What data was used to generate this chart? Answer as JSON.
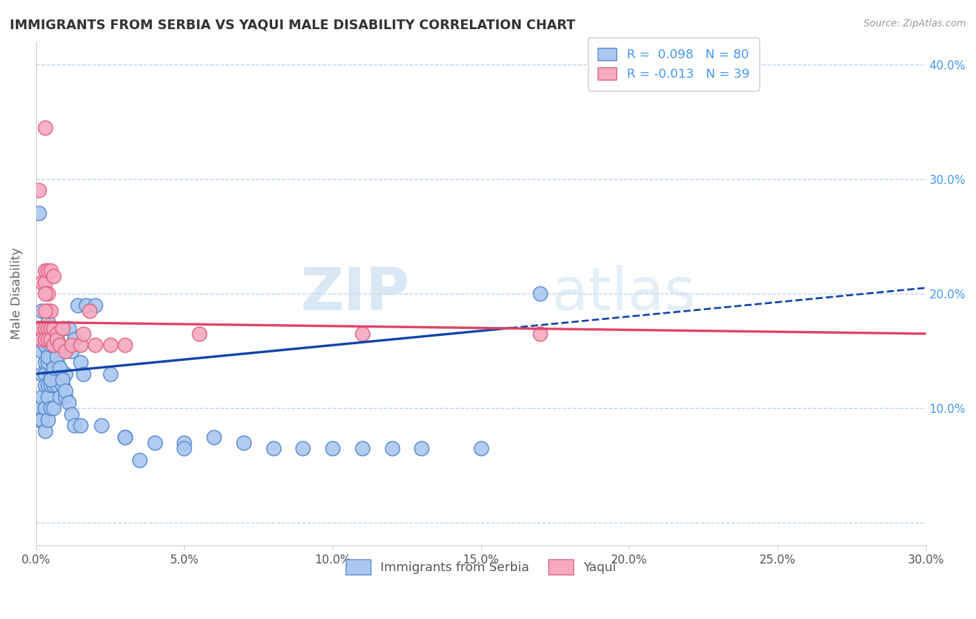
{
  "title": "IMMIGRANTS FROM SERBIA VS YAQUI MALE DISABILITY CORRELATION CHART",
  "source": "Source: ZipAtlas.com",
  "ylabel": "Male Disability",
  "xlim": [
    0.0,
    0.3
  ],
  "ylim": [
    -0.02,
    0.42
  ],
  "xticks": [
    0.0,
    0.05,
    0.1,
    0.15,
    0.2,
    0.25,
    0.3
  ],
  "yticks": [
    0.0,
    0.1,
    0.2,
    0.3,
    0.4
  ],
  "xtick_labels": [
    "0.0%",
    "5.0%",
    "10.0%",
    "15.0%",
    "20.0%",
    "25.0%",
    "30.0%"
  ],
  "ytick_labels_right": [
    "",
    "10.0%",
    "20.0%",
    "30.0%",
    "40.0%"
  ],
  "serbia_R": 0.098,
  "serbia_N": 80,
  "yaqui_R": -0.013,
  "yaqui_N": 39,
  "serbia_color": "#aac8f0",
  "serbia_edge": "#5588cc",
  "yaqui_color": "#f5aac0",
  "yaqui_edge": "#e06080",
  "serbia_trend_color": "#1144aa",
  "yaqui_trend_color": "#dd4466",
  "watermark_zip": "ZIP",
  "watermark_atlas": "atlas",
  "legend_label_1": "Immigrants from Serbia",
  "legend_label_2": "Yaqui",
  "serbia_x": [
    0.001,
    0.001,
    0.001,
    0.002,
    0.002,
    0.002,
    0.002,
    0.002,
    0.003,
    0.003,
    0.003,
    0.003,
    0.003,
    0.003,
    0.004,
    0.004,
    0.004,
    0.004,
    0.004,
    0.005,
    0.005,
    0.005,
    0.005,
    0.006,
    0.006,
    0.006,
    0.006,
    0.007,
    0.007,
    0.007,
    0.008,
    0.008,
    0.009,
    0.009,
    0.01,
    0.01,
    0.011,
    0.012,
    0.013,
    0.014,
    0.015,
    0.016,
    0.017,
    0.02,
    0.022,
    0.025,
    0.03,
    0.035,
    0.04,
    0.05,
    0.06,
    0.07,
    0.08,
    0.09,
    0.1,
    0.11,
    0.12,
    0.13,
    0.15,
    0.17,
    0.002,
    0.003,
    0.003,
    0.004,
    0.004,
    0.005,
    0.005,
    0.006,
    0.006,
    0.007,
    0.007,
    0.008,
    0.009,
    0.01,
    0.011,
    0.012,
    0.013,
    0.015,
    0.03,
    0.05
  ],
  "serbia_y": [
    0.27,
    0.1,
    0.09,
    0.17,
    0.15,
    0.13,
    0.11,
    0.09,
    0.16,
    0.14,
    0.13,
    0.12,
    0.1,
    0.08,
    0.15,
    0.14,
    0.12,
    0.11,
    0.09,
    0.15,
    0.13,
    0.12,
    0.1,
    0.14,
    0.13,
    0.12,
    0.1,
    0.16,
    0.14,
    0.12,
    0.13,
    0.11,
    0.15,
    0.12,
    0.13,
    0.11,
    0.17,
    0.15,
    0.16,
    0.19,
    0.14,
    0.13,
    0.19,
    0.19,
    0.085,
    0.13,
    0.075,
    0.055,
    0.07,
    0.07,
    0.075,
    0.07,
    0.065,
    0.065,
    0.065,
    0.065,
    0.065,
    0.065,
    0.065,
    0.2,
    0.185,
    0.155,
    0.165,
    0.145,
    0.175,
    0.155,
    0.125,
    0.155,
    0.135,
    0.165,
    0.145,
    0.135,
    0.125,
    0.115,
    0.105,
    0.095,
    0.085,
    0.085,
    0.075,
    0.065
  ],
  "yaqui_x": [
    0.001,
    0.001,
    0.002,
    0.002,
    0.002,
    0.003,
    0.003,
    0.003,
    0.003,
    0.003,
    0.004,
    0.004,
    0.004,
    0.004,
    0.005,
    0.005,
    0.005,
    0.006,
    0.006,
    0.007,
    0.007,
    0.008,
    0.009,
    0.01,
    0.012,
    0.015,
    0.016,
    0.018,
    0.02,
    0.025,
    0.03,
    0.055,
    0.11,
    0.17,
    0.003,
    0.003,
    0.004,
    0.005,
    0.006
  ],
  "yaqui_y": [
    0.29,
    0.17,
    0.21,
    0.17,
    0.16,
    0.345,
    0.22,
    0.21,
    0.17,
    0.16,
    0.2,
    0.185,
    0.17,
    0.16,
    0.185,
    0.17,
    0.16,
    0.17,
    0.155,
    0.165,
    0.16,
    0.155,
    0.17,
    0.15,
    0.155,
    0.155,
    0.165,
    0.185,
    0.155,
    0.155,
    0.155,
    0.165,
    0.165,
    0.165,
    0.2,
    0.185,
    0.22,
    0.22,
    0.215
  ]
}
